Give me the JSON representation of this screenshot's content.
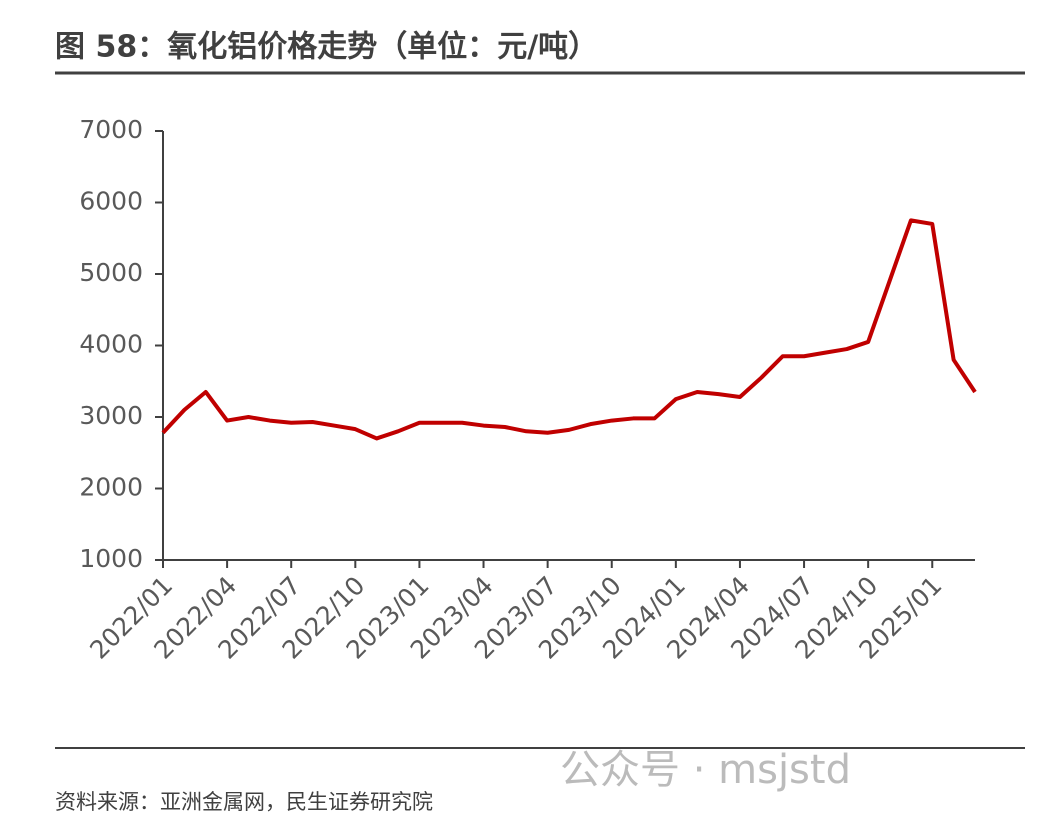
{
  "chart_data": {
    "type": "line",
    "title": "图 58：氧化铝价格走势（单位：元/吨）",
    "source": "资料来源：亚洲金属网，民生证券研究院",
    "watermark": "公众号 · msjstd",
    "x": [
      "2022/01",
      "2022/02",
      "2022/03",
      "2022/04",
      "2022/05",
      "2022/06",
      "2022/07",
      "2022/08",
      "2022/09",
      "2022/10",
      "2022/11",
      "2022/12",
      "2023/01",
      "2023/02",
      "2023/03",
      "2023/04",
      "2023/05",
      "2023/06",
      "2023/07",
      "2023/08",
      "2023/09",
      "2023/10",
      "2023/11",
      "2023/12",
      "2024/01",
      "2024/02",
      "2024/03",
      "2024/04",
      "2024/05",
      "2024/06",
      "2024/07",
      "2024/08",
      "2024/09",
      "2024/10",
      "2024/11",
      "2024/12",
      "2025/01",
      "2025/02",
      "2025/03"
    ],
    "series": [
      {
        "color": "#c00000",
        "values": [
          2780,
          3100,
          3350,
          2950,
          3000,
          2950,
          2920,
          2930,
          2880,
          2830,
          2700,
          2800,
          2920,
          2920,
          2920,
          2880,
          2860,
          2800,
          2780,
          2820,
          2900,
          2950,
          2980,
          2980,
          3250,
          3350,
          3320,
          3280,
          3550,
          3850,
          3850,
          3900,
          3950,
          4050,
          4900,
          5750,
          5700,
          3800,
          3350
        ]
      }
    ],
    "ylim": [
      1000,
      7000
    ],
    "yticks": [
      1000,
      2000,
      3000,
      4000,
      5000,
      6000,
      7000
    ]
  }
}
